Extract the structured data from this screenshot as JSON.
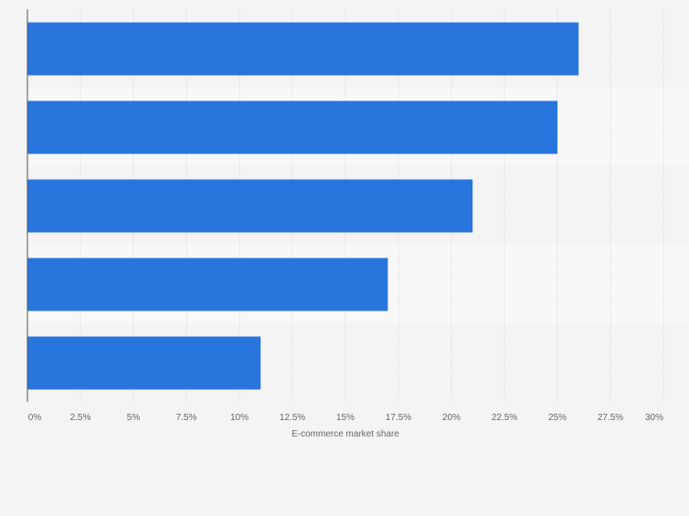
{
  "chart_data": {
    "type": "bar",
    "orientation": "horizontal",
    "title": "",
    "xlabel": "E-commerce market share",
    "ylabel": "",
    "categories": [
      "",
      "",
      "",
      "",
      ""
    ],
    "values": [
      26,
      25,
      21,
      17,
      11
    ],
    "xlim": [
      0,
      30
    ],
    "ticks": [
      0,
      2.5,
      5,
      7.5,
      10,
      12.5,
      15,
      17.5,
      20,
      22.5,
      25,
      27.5,
      30
    ],
    "tick_labels": [
      "0%",
      "2.5%",
      "5%",
      "7.5%",
      "10%",
      "12.5%",
      "15%",
      "17.5%",
      "20%",
      "22.5%",
      "25%",
      "27.5%",
      "30%"
    ],
    "grid": true,
    "legend": "none",
    "colors": {
      "bar": "#2875de",
      "band_dark": "#f4f4f4",
      "band_light": "#f8f8f8",
      "grid": "#d8d8d8",
      "axis": "#555555",
      "tick_text": "#666666"
    }
  }
}
